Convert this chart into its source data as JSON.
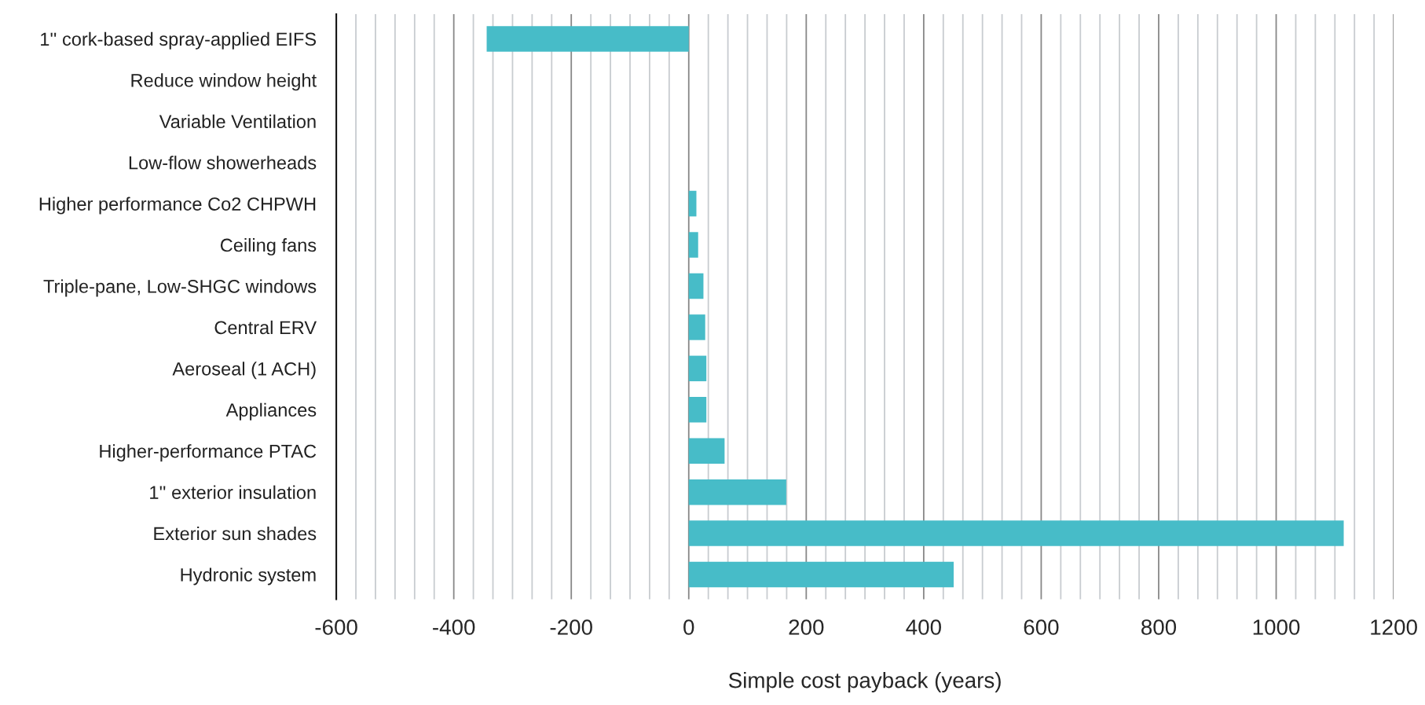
{
  "chart_data": {
    "type": "bar",
    "orientation": "horizontal",
    "xlabel": "Simple cost payback (years)",
    "categories": [
      "1'' cork-based spray-applied EIFS",
      "Reduce window height",
      "Variable Ventilation",
      "Low-flow showerheads",
      "Higher performance Co2 CHPWH",
      "Ceiling fans",
      "Triple-pane, Low-SHGC windows",
      "Central ERV",
      "Aeroseal (1 ACH)",
      "Appliances",
      "Higher-performance PTAC",
      "1'' exterior insulation",
      "Exterior sun shades",
      "Hydronic system"
    ],
    "values": [
      -344,
      null,
      null,
      null,
      13,
      16,
      25,
      28,
      30,
      30,
      61,
      166,
      1115,
      451
    ],
    "color": "#47bcc8",
    "xlim": [
      -600,
      1200
    ],
    "xticks": [
      -600,
      -400,
      -200,
      0,
      200,
      400,
      600,
      800,
      1000,
      1200
    ],
    "grid": "x"
  }
}
